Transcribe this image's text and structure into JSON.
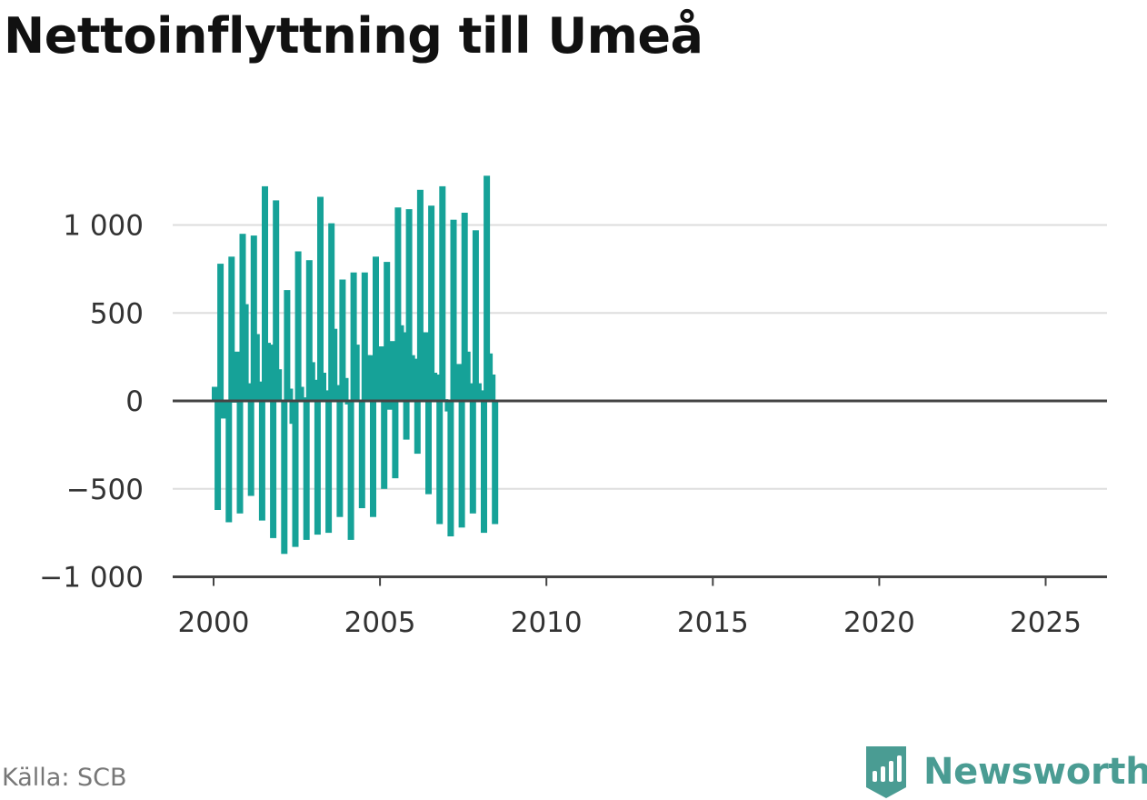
{
  "title": "Nettoinflyttning till Umeå",
  "source": "Källa: SCB",
  "brand": "Newsworthy",
  "colors": {
    "bar": "#16a298",
    "grid": "#dddddd",
    "axis": "#444444",
    "brand": "#4a9c93"
  },
  "chart_data": {
    "type": "bar",
    "title": "Nettoinflyttning till Umeå",
    "xlabel": "",
    "ylabel": "",
    "grid": true,
    "ylim": [
      -1000,
      1250
    ],
    "xlim": [
      2000,
      2025.5
    ],
    "x_ticks": [
      2000,
      2005,
      2010,
      2015,
      2020,
      2025
    ],
    "x_tick_labels": [
      "2000",
      "2005",
      "2010",
      "2015",
      "2020",
      "2025"
    ],
    "y_ticks": [
      -1000,
      -500,
      0,
      500,
      1000
    ],
    "y_tick_labels": [
      "−1 000",
      "−500",
      "0",
      "500",
      "1 000"
    ],
    "frequency": "monthly",
    "x_start": "2000-01",
    "values": [
      80,
      -620,
      780,
      -100,
      -20,
      -690,
      820,
      -10,
      280,
      -640,
      950,
      550,
      100,
      -540,
      940,
      380,
      110,
      -680,
      1220,
      330,
      320,
      -780,
      1140,
      180,
      -5,
      -870,
      630,
      70,
      -130,
      -830,
      850,
      80,
      20,
      -790,
      800,
      220,
      120,
      -760,
      1160,
      160,
      60,
      -750,
      1010,
      410,
      90,
      -660,
      690,
      130,
      -20,
      -790,
      730,
      320,
      0,
      -610,
      730,
      260,
      260,
      -660,
      820,
      260,
      310,
      -500,
      790,
      -50,
      340,
      -440,
      1100,
      430,
      390,
      -220,
      1090,
      260,
      240,
      -300,
      1200,
      310,
      390,
      -530,
      1110,
      160,
      150,
      -700,
      1220,
      10,
      -60,
      -770,
      1030,
      40,
      210,
      -720,
      1070,
      280,
      100,
      -640,
      970,
      100,
      60,
      -750,
      1280,
      270,
      150,
      -700
    ]
  }
}
